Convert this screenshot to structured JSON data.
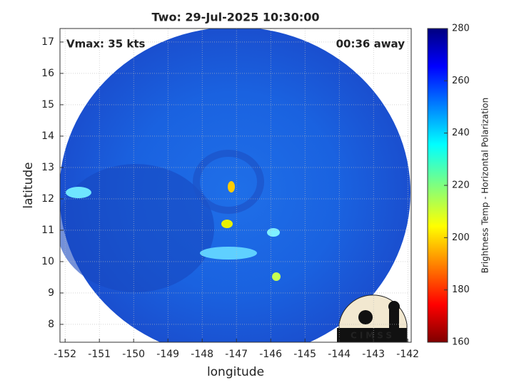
{
  "chart_data": {
    "type": "heatmap",
    "title": "Two: 29-Jul-2025 10:30:00",
    "annotations": [
      "Vmax: 35 kts",
      "00:36 away"
    ],
    "x_label": "longitude",
    "y_label": "latitude",
    "xlim": [
      -152.15,
      -141.9
    ],
    "ylim": [
      7.43,
      17.43
    ],
    "xticks": [
      -152,
      -151,
      -150,
      -149,
      -148,
      -147,
      -146,
      -145,
      -144,
      -143,
      -142
    ],
    "yticks": [
      8,
      9,
      10,
      11,
      12,
      13,
      14,
      15,
      16,
      17
    ],
    "grid": true,
    "colorbar": {
      "label": "Brightness Temp - Horizontal Polarization",
      "lim": [
        160,
        280
      ],
      "ticks": [
        160,
        180,
        200,
        220,
        240,
        260,
        280
      ],
      "colormap": "jet"
    },
    "logo": "CIMSS"
  }
}
